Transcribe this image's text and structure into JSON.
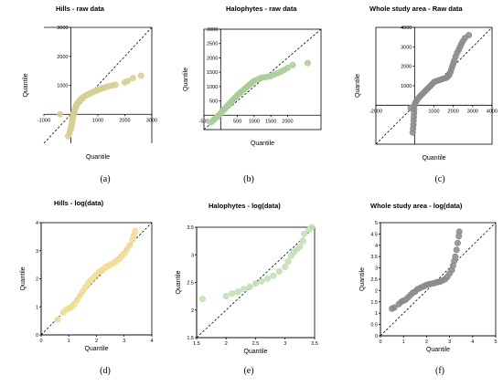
{
  "chart_data": [
    {
      "type": "scatter",
      "title": "Hills  - raw data",
      "xlabel": "Quantile",
      "ylabel": "Quantile",
      "xlim": [
        -1000,
        3000
      ],
      "ylim": [
        -1000,
        3000
      ],
      "xticks": [
        -1000,
        1000,
        2000,
        3000
      ],
      "xtick_labels": [
        "-1000",
        "1000",
        "2000",
        "3000"
      ],
      "yticks": [
        1000,
        2000,
        3000
      ],
      "ytick_labels": [
        "1000",
        "2000",
        "3000"
      ],
      "frame": false,
      "color": "#d7cf91",
      "points": [
        [
          -100,
          -750
        ],
        [
          -50,
          -650
        ],
        [
          -20,
          -550
        ],
        [
          0,
          -500
        ],
        [
          10,
          -450
        ],
        [
          20,
          -400
        ],
        [
          30,
          -350
        ],
        [
          40,
          -300
        ],
        [
          50,
          -250
        ],
        [
          60,
          -200
        ],
        [
          60,
          -150
        ],
        [
          70,
          -100
        ],
        [
          80,
          -50
        ],
        [
          90,
          0
        ],
        [
          110,
          50
        ],
        [
          130,
          100
        ],
        [
          140,
          150
        ],
        [
          160,
          200
        ],
        [
          180,
          250
        ],
        [
          200,
          300
        ],
        [
          230,
          350
        ],
        [
          260,
          400
        ],
        [
          300,
          450
        ],
        [
          350,
          500
        ],
        [
          400,
          550
        ],
        [
          450,
          580
        ],
        [
          500,
          620
        ],
        [
          560,
          650
        ],
        [
          620,
          680
        ],
        [
          680,
          700
        ],
        [
          740,
          730
        ],
        [
          800,
          760
        ],
        [
          870,
          790
        ],
        [
          950,
          820
        ],
        [
          1030,
          850
        ],
        [
          1120,
          880
        ],
        [
          1200,
          910
        ],
        [
          1300,
          940
        ],
        [
          1400,
          970
        ],
        [
          1550,
          1000
        ],
        [
          1650,
          1020
        ],
        [
          2000,
          1100
        ],
        [
          2100,
          1150
        ],
        [
          2300,
          1250
        ],
        [
          2600,
          1330
        ],
        [
          -400,
          0
        ]
      ],
      "panel_label": "(a)"
    },
    {
      "type": "scatter",
      "title": "Halophytes - raw data",
      "xlabel": "Quantile",
      "ylabel": "Quantile",
      "xlim": [
        -500,
        3000
      ],
      "ylim": [
        -500,
        3000
      ],
      "xticks": [
        -500,
        500,
        1000,
        1500,
        2000
      ],
      "xtick_labels": [
        "-500",
        "500",
        "1000",
        "1500",
        "2000"
      ],
      "yticks": [
        500,
        1000,
        1500,
        2000,
        2500,
        3000
      ],
      "ytick_labels": [
        "500",
        "1000",
        "1500",
        "2000",
        "2500",
        "3000"
      ],
      "frame": true,
      "color": "#a8cf98",
      "points": [
        [
          -300,
          -250
        ],
        [
          -250,
          -200
        ],
        [
          -200,
          -150
        ],
        [
          -150,
          -100
        ],
        [
          -100,
          -50
        ],
        [
          -60,
          0
        ],
        [
          -20,
          50
        ],
        [
          20,
          100
        ],
        [
          60,
          150
        ],
        [
          100,
          200
        ],
        [
          140,
          250
        ],
        [
          180,
          300
        ],
        [
          220,
          350
        ],
        [
          260,
          400
        ],
        [
          300,
          450
        ],
        [
          340,
          500
        ],
        [
          380,
          550
        ],
        [
          420,
          600
        ],
        [
          460,
          650
        ],
        [
          500,
          700
        ],
        [
          550,
          750
        ],
        [
          600,
          800
        ],
        [
          650,
          850
        ],
        [
          700,
          900
        ],
        [
          750,
          950
        ],
        [
          800,
          1000
        ],
        [
          850,
          1050
        ],
        [
          900,
          1100
        ],
        [
          950,
          1150
        ],
        [
          1000,
          1200
        ],
        [
          1100,
          1250
        ],
        [
          1200,
          1300
        ],
        [
          1300,
          1320
        ],
        [
          1400,
          1340
        ],
        [
          1500,
          1370
        ],
        [
          1600,
          1420
        ],
        [
          1700,
          1470
        ],
        [
          1800,
          1520
        ],
        [
          1900,
          1580
        ],
        [
          2000,
          1650
        ],
        [
          2150,
          1750
        ],
        [
          2600,
          1820
        ]
      ],
      "panel_label": "(b)"
    },
    {
      "type": "scatter",
      "title": "Whole study area - Raw data",
      "xlabel": "Quantile",
      "ylabel": "Quantile",
      "xlim": [
        -2000,
        4000
      ],
      "ylim": [
        -2000,
        4000
      ],
      "xticks": [
        -2000,
        1000,
        2000,
        3000,
        4000
      ],
      "xtick_labels": [
        "-2000",
        "1000",
        "2000",
        "3000",
        "4000"
      ],
      "yticks": [
        1000,
        2000,
        3000,
        4000
      ],
      "ytick_labels": [
        "1000",
        "2000",
        "3000",
        "4000"
      ],
      "frame": true,
      "color": "#8c8c8c",
      "points": [
        [
          -100,
          -1400
        ],
        [
          -80,
          -1200
        ],
        [
          -60,
          -1000
        ],
        [
          -50,
          -800
        ],
        [
          -40,
          -600
        ],
        [
          -30,
          -400
        ],
        [
          -20,
          -200
        ],
        [
          0,
          0
        ],
        [
          30,
          100
        ],
        [
          80,
          200
        ],
        [
          150,
          300
        ],
        [
          230,
          400
        ],
        [
          320,
          500
        ],
        [
          420,
          600
        ],
        [
          520,
          700
        ],
        [
          620,
          800
        ],
        [
          720,
          900
        ],
        [
          820,
          1000
        ],
        [
          920,
          1100
        ],
        [
          1020,
          1200
        ],
        [
          1150,
          1250
        ],
        [
          1300,
          1300
        ],
        [
          1450,
          1350
        ],
        [
          1600,
          1400
        ],
        [
          1700,
          1450
        ],
        [
          1780,
          1550
        ],
        [
          1850,
          1700
        ],
        [
          1900,
          1850
        ],
        [
          1950,
          2000
        ],
        [
          2000,
          2150
        ],
        [
          2050,
          2300
        ],
        [
          2120,
          2500
        ],
        [
          2200,
          2700
        ],
        [
          2280,
          2850
        ],
        [
          2350,
          3000
        ],
        [
          2420,
          3150
        ],
        [
          2500,
          3300
        ],
        [
          2600,
          3450
        ],
        [
          2800,
          3600
        ],
        [
          -200,
          -150
        ]
      ],
      "panel_label": "(c)"
    },
    {
      "type": "scatter",
      "title": "Hills - log(data)",
      "xlabel": "Quantile",
      "ylabel": "Quantile",
      "xlim": [
        0,
        4
      ],
      "ylim": [
        0,
        4
      ],
      "xticks": [
        0,
        1,
        2,
        3,
        4
      ],
      "xtick_labels": [
        "0",
        "1",
        "2",
        "3",
        "4"
      ],
      "yticks": [
        0,
        1,
        2,
        3,
        4
      ],
      "ytick_labels": [
        "0",
        "1",
        "2",
        "3",
        "4"
      ],
      "frame": true,
      "color": "#f3dc90",
      "points": [
        [
          0.6,
          0.55
        ],
        [
          0.8,
          0.8
        ],
        [
          0.9,
          0.9
        ],
        [
          1.0,
          0.95
        ],
        [
          1.1,
          1.0
        ],
        [
          1.2,
          1.1
        ],
        [
          1.3,
          1.25
        ],
        [
          1.4,
          1.4
        ],
        [
          1.5,
          1.55
        ],
        [
          1.6,
          1.7
        ],
        [
          1.7,
          1.85
        ],
        [
          1.8,
          1.95
        ],
        [
          1.9,
          2.05
        ],
        [
          2.0,
          2.15
        ],
        [
          2.1,
          2.25
        ],
        [
          2.2,
          2.3
        ],
        [
          2.3,
          2.4
        ],
        [
          2.4,
          2.45
        ],
        [
          2.5,
          2.5
        ],
        [
          2.6,
          2.55
        ],
        [
          2.7,
          2.62
        ],
        [
          2.8,
          2.7
        ],
        [
          2.9,
          2.8
        ],
        [
          3.0,
          2.9
        ],
        [
          3.1,
          3.05
        ],
        [
          3.2,
          3.2
        ],
        [
          3.3,
          3.4
        ],
        [
          3.35,
          3.55
        ],
        [
          3.4,
          3.7
        ]
      ],
      "panel_label": "(d)"
    },
    {
      "type": "scatter",
      "title": "Halophytes - log(data)",
      "xlabel": "Quantile",
      "ylabel": "Quantile",
      "xlim": [
        1.5,
        3.5
      ],
      "ylim": [
        1.5,
        3.5
      ],
      "xticks": [
        1.5,
        2,
        2.5,
        3,
        3.5
      ],
      "xtick_labels": [
        "1.5",
        "2",
        "2.5",
        "3",
        "3.5"
      ],
      "yticks": [
        1.5,
        2,
        2.5,
        3,
        3.5
      ],
      "ytick_labels": [
        "1.5",
        "2",
        "2.5",
        "3",
        "3.5"
      ],
      "frame": true,
      "color": "#bfe0b0",
      "points": [
        [
          1.6,
          2.2
        ],
        [
          2.0,
          2.25
        ],
        [
          2.1,
          2.3
        ],
        [
          2.2,
          2.33
        ],
        [
          2.3,
          2.38
        ],
        [
          2.4,
          2.42
        ],
        [
          2.5,
          2.48
        ],
        [
          2.6,
          2.52
        ],
        [
          2.7,
          2.57
        ],
        [
          2.8,
          2.62
        ],
        [
          2.9,
          2.7
        ],
        [
          3.0,
          2.78
        ],
        [
          3.05,
          2.88
        ],
        [
          3.1,
          2.98
        ],
        [
          3.15,
          3.05
        ],
        [
          3.2,
          3.1
        ],
        [
          3.25,
          3.15
        ],
        [
          3.3,
          3.25
        ],
        [
          3.32,
          3.38
        ],
        [
          3.4,
          3.45
        ],
        [
          3.45,
          3.5
        ]
      ],
      "panel_label": "(e)"
    },
    {
      "type": "scatter",
      "title": "Whole study area - log(data)",
      "xlabel": "Quantile",
      "ylabel": "Quantile",
      "xlim": [
        0,
        5
      ],
      "ylim": [
        0,
        5
      ],
      "xticks": [
        0,
        1,
        2,
        3,
        4,
        5
      ],
      "xtick_labels": [
        "0",
        "1",
        "2",
        "3",
        "4",
        "5"
      ],
      "yticks": [
        0,
        0.5,
        1,
        1.5,
        2,
        2.5,
        3,
        3.5,
        4,
        4.5,
        5
      ],
      "ytick_labels": [
        "0",
        "0.5",
        "1",
        "1.5",
        "2",
        "2.5",
        "3",
        "3.5",
        "4",
        "4.5",
        "5"
      ],
      "frame": true,
      "color": "#8c8c8c",
      "points": [
        [
          0.5,
          1.2
        ],
        [
          0.6,
          1.25
        ],
        [
          0.8,
          1.4
        ],
        [
          0.9,
          1.5
        ],
        [
          1.0,
          1.55
        ],
        [
          1.1,
          1.6
        ],
        [
          1.2,
          1.7
        ],
        [
          1.3,
          1.8
        ],
        [
          1.4,
          1.9
        ],
        [
          1.5,
          1.95
        ],
        [
          1.6,
          2.05
        ],
        [
          1.7,
          2.1
        ],
        [
          1.8,
          2.15
        ],
        [
          1.9,
          2.2
        ],
        [
          2.0,
          2.25
        ],
        [
          2.1,
          2.28
        ],
        [
          2.2,
          2.3
        ],
        [
          2.3,
          2.32
        ],
        [
          2.4,
          2.35
        ],
        [
          2.5,
          2.38
        ],
        [
          2.6,
          2.4
        ],
        [
          2.7,
          2.45
        ],
        [
          2.8,
          2.5
        ],
        [
          2.9,
          2.6
        ],
        [
          3.0,
          2.75
        ],
        [
          3.1,
          2.9
        ],
        [
          3.15,
          3.1
        ],
        [
          3.2,
          3.3
        ],
        [
          3.25,
          3.5
        ],
        [
          3.3,
          3.8
        ],
        [
          3.35,
          4.1
        ],
        [
          3.4,
          4.4
        ],
        [
          3.42,
          4.6
        ]
      ],
      "panel_label": "(f)"
    }
  ]
}
